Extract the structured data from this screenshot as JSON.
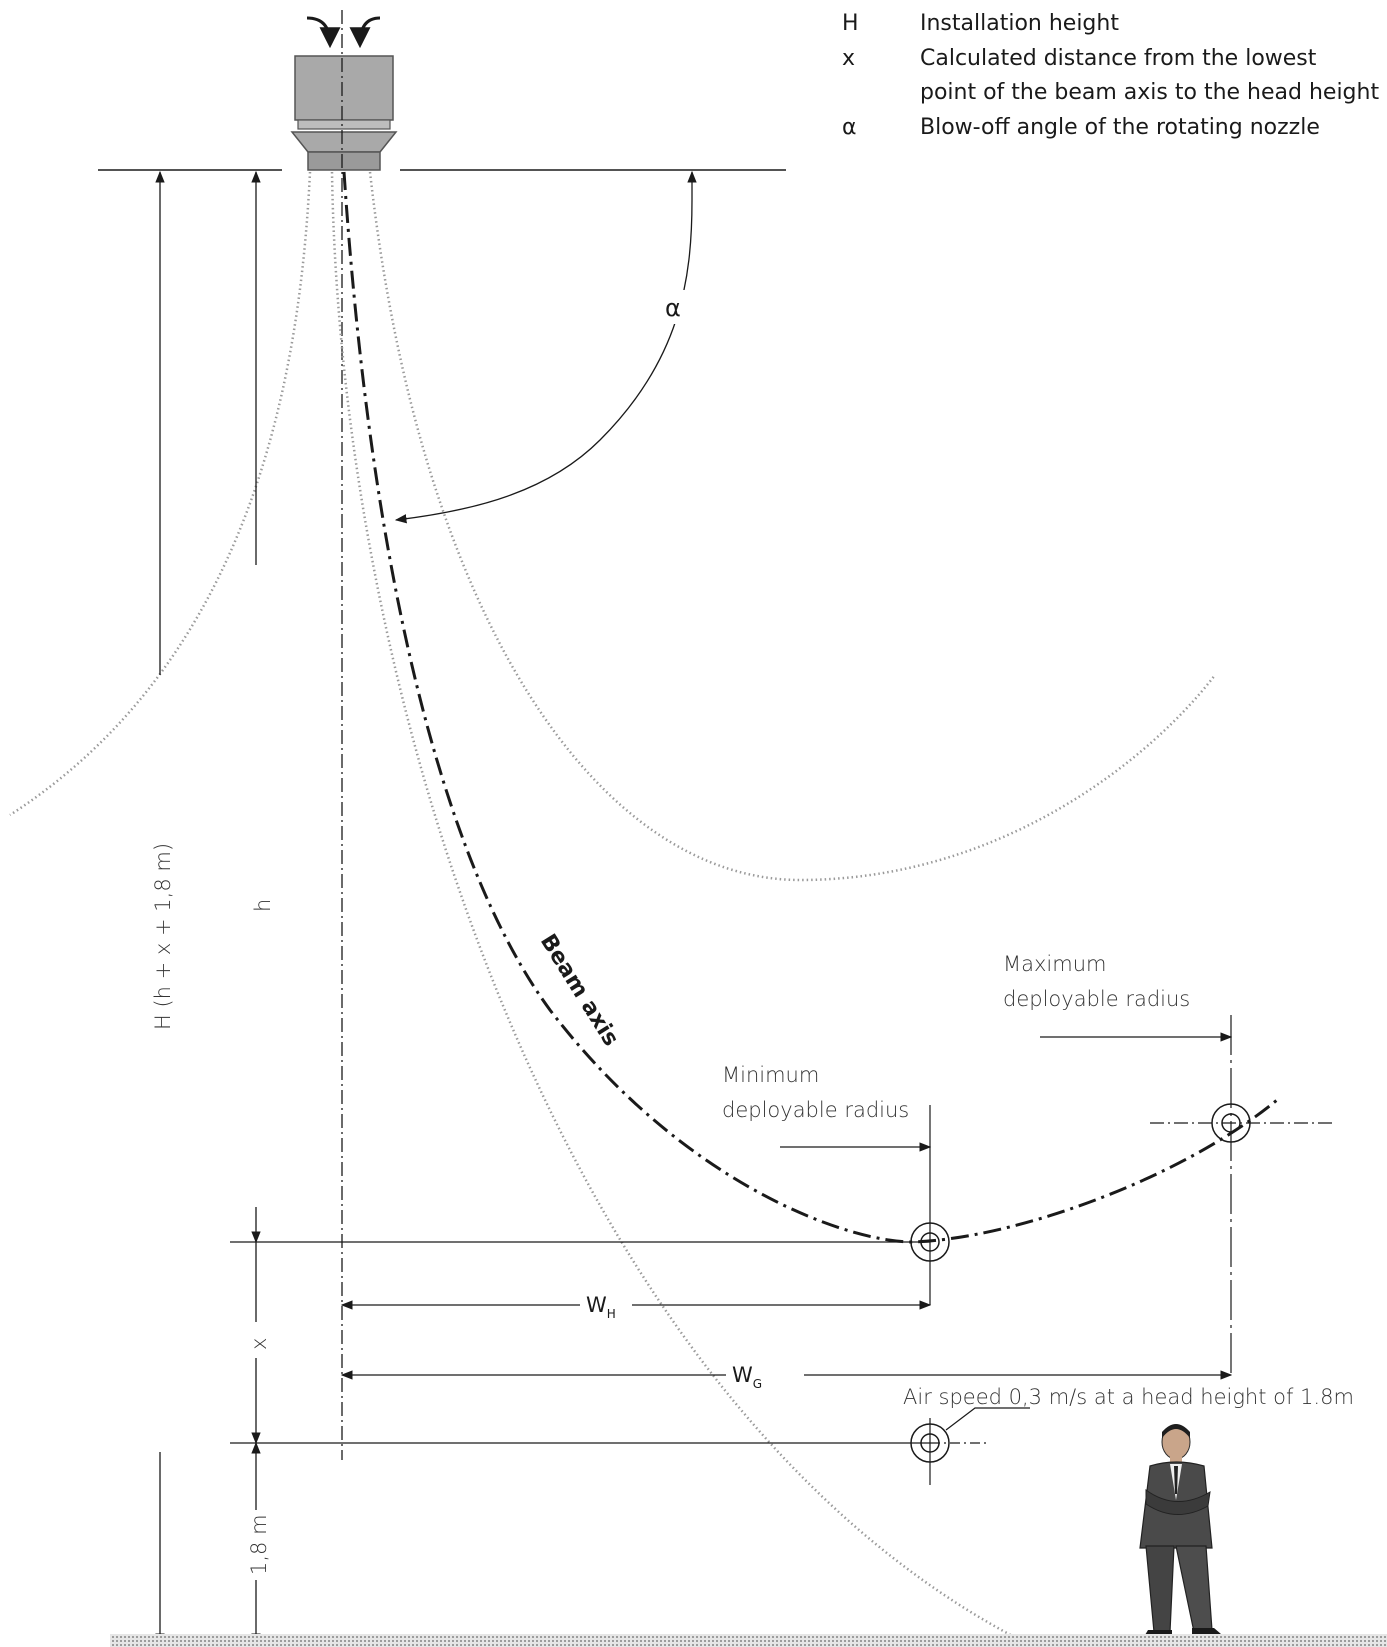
{
  "legend": [
    {
      "symbol": "H",
      "text": "Installation height"
    },
    {
      "symbol": "x",
      "text": "Calculated distance from the lowest"
    },
    {
      "symbol": "",
      "text": "point of the beam axis to the head height"
    },
    {
      "symbol": "α",
      "text": "Blow-off angle of the rotating nozzle"
    }
  ],
  "labels": {
    "alpha": "α",
    "H_dim": "H (h + x + 1,8 m)",
    "h_dim": "h",
    "x_dim": "x",
    "head_dim": "1,8 m",
    "beam_axis": "Beam axis",
    "max_radius_1": "Maximum",
    "max_radius_2": "deployable radius",
    "min_radius_1": "Minimum",
    "min_radius_2": "deployable radius",
    "WH_main": "W",
    "WH_sub": "H",
    "WG_main": "W",
    "WG_sub": "G",
    "air_speed": "Air speed  0,3 m/s at a head height of 1.8m"
  },
  "colors": {
    "line": "#1a1a1a",
    "device_body": "#a9a9a9",
    "spray_dots": "#9a9a9a",
    "floor": "#d8d8d8",
    "suit": "#4a4a4a"
  },
  "icons": [
    "air-inlet-arrow-icon",
    "person-figure-icon",
    "target-circle-icon"
  ]
}
